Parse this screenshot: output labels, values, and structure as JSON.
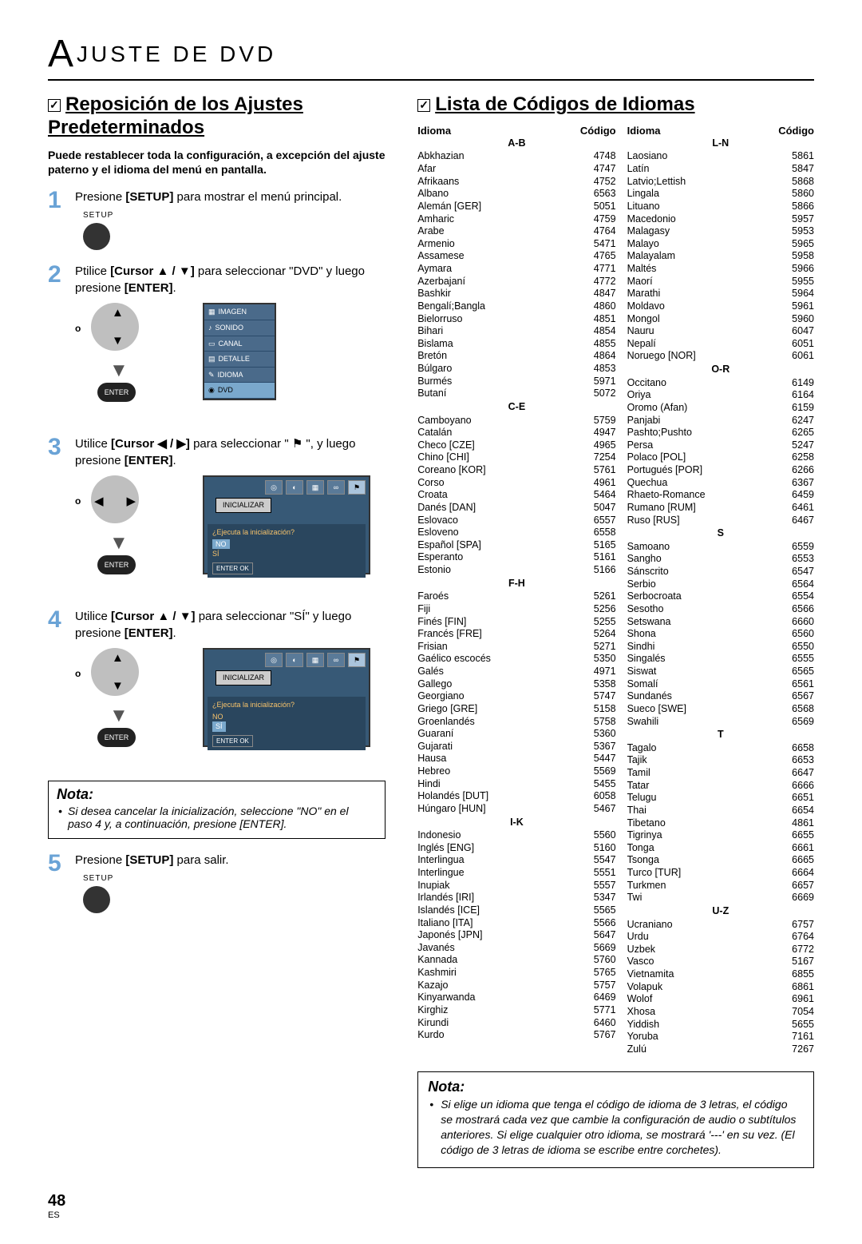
{
  "header": {
    "big_letter": "A",
    "rest": "JUSTE  DE  DVD"
  },
  "left": {
    "title": "Reposición de los Ajustes Predeterminados",
    "intro": "Puede restablecer toda la configuración, a excepción del ajuste paterno y el idioma del menú en pantalla.",
    "steps": {
      "s1": {
        "num": "1",
        "text_a": "Presione ",
        "bold": "[SETUP]",
        "text_b": " para mostrar el menú principal.",
        "setup_label": "SETUP"
      },
      "s2": {
        "num": "2",
        "text_a": "Ptilice ",
        "bold": "[Cursor ▲ / ▼]",
        "text_b": " para seleccionar \"DVD\" y luego presione ",
        "bold2": "[ENTER]",
        "dot": ".",
        "menu": [
          "IMAGEN",
          "SONIDO",
          "CANAL",
          "DETALLE",
          "IDIOMA",
          "DVD"
        ],
        "menu_sel": 5,
        "o": "o",
        "enter": "ENTER"
      },
      "s3": {
        "num": "3",
        "text_a": "Utilice ",
        "bold": "[Cursor ◀ / ▶]",
        "text_b": " para seleccionar \" ",
        "icon": "⚑",
        "text_c": " \", y luego presione ",
        "bold2": "[ENTER]",
        "dot": ".",
        "o": "o",
        "enter": "ENTER",
        "screen": {
          "ini": "INICIALIZAR",
          "q": "¿Ejecuta la inicialización?",
          "no": "NO",
          "si": "SÍ",
          "ctrl": "ENTER OK"
        }
      },
      "s4": {
        "num": "4",
        "text_a": "Utilice ",
        "bold": "[Cursor ▲ / ▼]",
        "text_b": " para seleccionar \"SÍ\" y luego presione ",
        "bold2": "[ENTER]",
        "dot": ".",
        "o": "o",
        "enter": "ENTER",
        "screen": {
          "ini": "INICIALIZAR",
          "q": "¿Ejecuta la inicialización?",
          "no": "NO",
          "si": "SÍ",
          "ctrl": "ENTER OK"
        }
      },
      "s5": {
        "num": "5",
        "text_a": "Presione ",
        "bold": "[SETUP]",
        "text_b": " para salir.",
        "setup_label": "SETUP"
      }
    },
    "nota": {
      "title": "Nota:",
      "body": "Si desea cancelar la inicialización, seleccione \"NO\" en el paso 4 y, a continuación, presione [ENTER]."
    }
  },
  "right": {
    "title": "Lista de Códigos de Idiomas",
    "header": {
      "c1": "Idioma",
      "c2": "Código",
      "c3": "Idioma",
      "c4": "Código"
    },
    "colA": [
      {
        "g": "A-B"
      },
      {
        "n": "Abkhazian",
        "c": "4748"
      },
      {
        "n": "Afar",
        "c": "4747"
      },
      {
        "n": "Afrikaans",
        "c": "4752"
      },
      {
        "n": "Albano",
        "c": "6563"
      },
      {
        "n": "Alemán [GER]",
        "c": "5051"
      },
      {
        "n": "Amharic",
        "c": "4759"
      },
      {
        "n": "Arabe",
        "c": "4764"
      },
      {
        "n": "Armenio",
        "c": "5471"
      },
      {
        "n": "Assamese",
        "c": "4765"
      },
      {
        "n": "Aymara",
        "c": "4771"
      },
      {
        "n": "Azerbajaní",
        "c": "4772"
      },
      {
        "n": "Bashkir",
        "c": "4847"
      },
      {
        "n": "Bengalí;Bangla",
        "c": "4860"
      },
      {
        "n": "Bielorruso",
        "c": "4851"
      },
      {
        "n": "Bihari",
        "c": "4854"
      },
      {
        "n": "Bislama",
        "c": "4855"
      },
      {
        "n": "Bretón",
        "c": "4864"
      },
      {
        "n": "Búlgaro",
        "c": "4853"
      },
      {
        "n": "Burmés",
        "c": "5971"
      },
      {
        "n": "Butaní",
        "c": "5072"
      },
      {
        "g": "C-E"
      },
      {
        "n": "Camboyano",
        "c": "5759"
      },
      {
        "n": "Catalán",
        "c": "4947"
      },
      {
        "n": "Checo [CZE]",
        "c": "4965"
      },
      {
        "n": "Chino [CHI]",
        "c": "7254"
      },
      {
        "n": "Coreano [KOR]",
        "c": "5761"
      },
      {
        "n": "Corso",
        "c": "4961"
      },
      {
        "n": "Croata",
        "c": "5464"
      },
      {
        "n": "Danés [DAN]",
        "c": "5047"
      },
      {
        "n": "Eslovaco",
        "c": "6557"
      },
      {
        "n": "Esloveno",
        "c": "6558"
      },
      {
        "n": "Español [SPA]",
        "c": "5165"
      },
      {
        "n": "Esperanto",
        "c": "5161"
      },
      {
        "n": "Estonio",
        "c": "5166"
      },
      {
        "g": "F-H"
      },
      {
        "n": "Faroés",
        "c": "5261"
      },
      {
        "n": "Fiji",
        "c": "5256"
      },
      {
        "n": "Finés [FIN]",
        "c": "5255"
      },
      {
        "n": "Francés [FRE]",
        "c": "5264"
      },
      {
        "n": "Frisian",
        "c": "5271"
      },
      {
        "n": "Gaélico escocés",
        "c": "5350"
      },
      {
        "n": "Galés",
        "c": "4971"
      },
      {
        "n": "Gallego",
        "c": "5358"
      },
      {
        "n": "Georgiano",
        "c": "5747"
      },
      {
        "n": "Griego [GRE]",
        "c": "5158"
      },
      {
        "n": "Groenlandés",
        "c": "5758"
      },
      {
        "n": "Guaraní",
        "c": "5360"
      },
      {
        "n": "Gujarati",
        "c": "5367"
      },
      {
        "n": "Hausa",
        "c": "5447"
      },
      {
        "n": "Hebreo",
        "c": "5569"
      },
      {
        "n": "Hindi",
        "c": "5455"
      },
      {
        "n": "Holandés [DUT]",
        "c": "6058"
      },
      {
        "n": "Húngaro [HUN]",
        "c": "5467"
      },
      {
        "g": "I-K"
      },
      {
        "n": "Indonesio",
        "c": "5560"
      },
      {
        "n": "Inglés [ENG]",
        "c": "5160"
      },
      {
        "n": "Interlingua",
        "c": "5547"
      },
      {
        "n": "Interlingue",
        "c": "5551"
      },
      {
        "n": "Inupiak",
        "c": "5557"
      },
      {
        "n": "Irlandés [IRI]",
        "c": "5347"
      },
      {
        "n": "Islandés [ICE]",
        "c": "5565"
      },
      {
        "n": "Italiano [ITA]",
        "c": "5566"
      },
      {
        "n": "Japonés [JPN]",
        "c": "5647"
      },
      {
        "n": "Javanés",
        "c": "5669"
      },
      {
        "n": "Kannada",
        "c": "5760"
      },
      {
        "n": "Kashmiri",
        "c": "5765"
      },
      {
        "n": "Kazajo",
        "c": "5757"
      },
      {
        "n": "Kinyarwanda",
        "c": "6469"
      },
      {
        "n": "Kirghiz",
        "c": "5771"
      },
      {
        "n": "Kirundi",
        "c": "6460"
      },
      {
        "n": "Kurdo",
        "c": "5767"
      }
    ],
    "colB": [
      {
        "g": "L-N"
      },
      {
        "n": "Laosiano",
        "c": "5861"
      },
      {
        "n": "Latín",
        "c": "5847"
      },
      {
        "n": "Latvio;Lettish",
        "c": "5868"
      },
      {
        "n": "Lingala",
        "c": "5860"
      },
      {
        "n": "Lituano",
        "c": "5866"
      },
      {
        "n": "Macedonio",
        "c": "5957"
      },
      {
        "n": "Malagasy",
        "c": "5953"
      },
      {
        "n": "Malayo",
        "c": "5965"
      },
      {
        "n": "Malayalam",
        "c": "5958"
      },
      {
        "n": "Maltés",
        "c": "5966"
      },
      {
        "n": "Maorí",
        "c": "5955"
      },
      {
        "n": "Marathi",
        "c": "5964"
      },
      {
        "n": "Moldavo",
        "c": "5961"
      },
      {
        "n": "Mongol",
        "c": "5960"
      },
      {
        "n": "Nauru",
        "c": "6047"
      },
      {
        "n": "Nepalí",
        "c": "6051"
      },
      {
        "n": "Noruego [NOR]",
        "c": "6061"
      },
      {
        "g": "O-R"
      },
      {
        "n": "Occitano",
        "c": "6149"
      },
      {
        "n": "Oriya",
        "c": "6164"
      },
      {
        "n": "Oromo (Afan)",
        "c": "6159"
      },
      {
        "n": "Panjabi",
        "c": "6247"
      },
      {
        "n": "Pashto;Pushto",
        "c": "6265"
      },
      {
        "n": "Persa",
        "c": "5247"
      },
      {
        "n": "Polaco [POL]",
        "c": "6258"
      },
      {
        "n": "Portugués [POR]",
        "c": "6266"
      },
      {
        "n": "Quechua",
        "c": "6367"
      },
      {
        "n": "Rhaeto-Romance",
        "c": "6459"
      },
      {
        "n": "Rumano [RUM]",
        "c": "6461"
      },
      {
        "n": "Ruso [RUS]",
        "c": "6467"
      },
      {
        "g": "S"
      },
      {
        "n": "Samoano",
        "c": "6559"
      },
      {
        "n": "Sangho",
        "c": "6553"
      },
      {
        "n": "Sánscrito",
        "c": "6547"
      },
      {
        "n": "Serbio",
        "c": "6564"
      },
      {
        "n": "Serbocroata",
        "c": "6554"
      },
      {
        "n": "Sesotho",
        "c": "6566"
      },
      {
        "n": "Setswana",
        "c": "6660"
      },
      {
        "n": "Shona",
        "c": "6560"
      },
      {
        "n": "Sindhi",
        "c": "6550"
      },
      {
        "n": "Singalés",
        "c": "6555"
      },
      {
        "n": "Siswat",
        "c": "6565"
      },
      {
        "n": "Somalí",
        "c": "6561"
      },
      {
        "n": "Sundanés",
        "c": "6567"
      },
      {
        "n": "Sueco [SWE]",
        "c": "6568"
      },
      {
        "n": "Swahili",
        "c": "6569"
      },
      {
        "g": "T"
      },
      {
        "n": "Tagalo",
        "c": "6658"
      },
      {
        "n": "Tajik",
        "c": "6653"
      },
      {
        "n": "Tamil",
        "c": "6647"
      },
      {
        "n": "Tatar",
        "c": "6666"
      },
      {
        "n": "Telugu",
        "c": "6651"
      },
      {
        "n": "Thai",
        "c": "6654"
      },
      {
        "n": "Tibetano",
        "c": "4861"
      },
      {
        "n": "Tigrinya",
        "c": "6655"
      },
      {
        "n": "Tonga",
        "c": "6661"
      },
      {
        "n": "Tsonga",
        "c": "6665"
      },
      {
        "n": "Turco [TUR]",
        "c": "6664"
      },
      {
        "n": "Turkmen",
        "c": "6657"
      },
      {
        "n": "Twi",
        "c": "6669"
      },
      {
        "g": "U-Z"
      },
      {
        "n": "Ucraniano",
        "c": "6757"
      },
      {
        "n": "Urdu",
        "c": "6764"
      },
      {
        "n": "Uzbek",
        "c": "6772"
      },
      {
        "n": "Vasco",
        "c": "5167"
      },
      {
        "n": "Vietnamita",
        "c": "6855"
      },
      {
        "n": "Volapuk",
        "c": "6861"
      },
      {
        "n": "Wolof",
        "c": "6961"
      },
      {
        "n": "Xhosa",
        "c": "7054"
      },
      {
        "n": "Yiddish",
        "c": "5655"
      },
      {
        "n": "Yoruba",
        "c": "7161"
      },
      {
        "n": "Zulú",
        "c": "7267"
      }
    ]
  },
  "nota_wide": {
    "title": "Nota:",
    "body": "Si elige un idioma que tenga el código de idioma de 3 letras, el código se mostrará cada vez que cambie la configuración de audio o subtítulos anteriores. Si elige cualquier otro idioma, se mostrará '---' en su vez. (El código de 3 letras de idioma se escribe entre corchetes)."
  },
  "footer": {
    "page": "48",
    "es": "ES"
  }
}
